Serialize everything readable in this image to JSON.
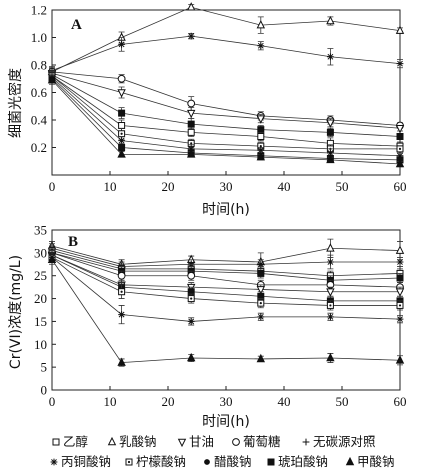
{
  "chart_data": [
    {
      "type": "line",
      "panel_label": "A",
      "xlabel": "时间(h)",
      "ylabel": "细菌光密度",
      "x": [
        0,
        12,
        24,
        36,
        48,
        60
      ],
      "xlim": [
        0,
        60
      ],
      "ylim": [
        0,
        1.2
      ],
      "xticks": [
        "0",
        "10",
        "20",
        "30",
        "40",
        "50",
        "60"
      ],
      "yticks": [
        "0.2",
        "0.4",
        "0.6",
        "0.8",
        "1.0",
        "1.2"
      ],
      "series": [
        {
          "name": "乳酸钠",
          "marker": "triangle-open",
          "values": [
            0.75,
            1.0,
            1.22,
            1.09,
            1.12,
            1.05
          ],
          "errors": [
            0.03,
            0.04,
            0.02,
            0.06,
            0.03,
            0.02
          ]
        },
        {
          "name": "无碳源对照",
          "marker": "star",
          "values": [
            0.76,
            0.95,
            1.01,
            0.94,
            0.86,
            0.81
          ],
          "errors": [
            0.03,
            0.05,
            0.02,
            0.03,
            0.06,
            0.03
          ]
        },
        {
          "name": "葡萄糖",
          "marker": "circle-open",
          "values": [
            0.75,
            0.7,
            0.52,
            0.43,
            0.4,
            0.36
          ],
          "errors": [
            0.03,
            0.03,
            0.05,
            0.03,
            0.03,
            0.02
          ]
        },
        {
          "name": "甘油",
          "marker": "triangle-down-open",
          "values": [
            0.74,
            0.6,
            0.45,
            0.41,
            0.38,
            0.34
          ],
          "errors": [
            0.03,
            0.04,
            0.04,
            0.03,
            0.03,
            0.02
          ]
        },
        {
          "name": "醋酸钠",
          "marker": "square-filled",
          "values": [
            0.73,
            0.45,
            0.37,
            0.33,
            0.31,
            0.28
          ],
          "errors": [
            0.03,
            0.04,
            0.04,
            0.03,
            0.03,
            0.02
          ]
        },
        {
          "name": "乙醇",
          "marker": "square-open",
          "values": [
            0.72,
            0.36,
            0.31,
            0.28,
            0.23,
            0.21
          ],
          "errors": [
            0.03,
            0.04,
            0.03,
            0.03,
            0.04,
            0.03
          ]
        },
        {
          "name": "柠檬酸钠",
          "marker": "square-dot",
          "values": [
            0.72,
            0.3,
            0.23,
            0.21,
            0.19,
            0.19
          ],
          "errors": [
            0.03,
            0.04,
            0.03,
            0.03,
            0.03,
            0.02
          ]
        },
        {
          "name": "丙铜酸钠",
          "marker": "star",
          "values": [
            0.71,
            0.25,
            0.19,
            0.18,
            0.16,
            0.14
          ],
          "errors": [
            0.03,
            0.03,
            0.03,
            0.02,
            0.03,
            0.02
          ]
        },
        {
          "name": "琥珀酸钠",
          "marker": "square-filled",
          "values": [
            0.7,
            0.2,
            0.16,
            0.14,
            0.12,
            0.11
          ],
          "errors": [
            0.03,
            0.03,
            0.02,
            0.02,
            0.02,
            0.02
          ]
        },
        {
          "name": "甲酸钠",
          "marker": "triangle-filled",
          "values": [
            0.69,
            0.15,
            0.15,
            0.13,
            0.11,
            0.08
          ],
          "errors": [
            0.03,
            0.02,
            0.02,
            0.02,
            0.02,
            0.02
          ]
        }
      ]
    },
    {
      "type": "line",
      "panel_label": "B",
      "xlabel": "时间(h)",
      "ylabel": "Cr(VI)浓度(mg/L)",
      "x": [
        0,
        12,
        24,
        36,
        48,
        60
      ],
      "xlim": [
        0,
        60
      ],
      "ylim": [
        0,
        35
      ],
      "xticks": [
        "0",
        "10",
        "20",
        "30",
        "40",
        "50",
        "60"
      ],
      "yticks": [
        "0",
        "5",
        "10",
        "15",
        "20",
        "25",
        "30",
        "35"
      ],
      "series": [
        {
          "name": "乳酸钠",
          "marker": "triangle-open",
          "values": [
            31.5,
            27.5,
            28.5,
            28.0,
            31.0,
            30.5
          ],
          "errors": [
            1.0,
            1.0,
            0.8,
            2.0,
            2.0,
            2.0
          ]
        },
        {
          "name": "无碳源对照",
          "marker": "star",
          "values": [
            31.0,
            27.0,
            27.5,
            27.5,
            28.0,
            28.0
          ],
          "errors": [
            1.0,
            1.0,
            1.0,
            1.0,
            1.5,
            1.0
          ]
        },
        {
          "name": "乙醇",
          "marker": "square-open",
          "values": [
            30.5,
            26.5,
            26.5,
            26.0,
            25.0,
            25.5
          ],
          "errors": [
            1.0,
            1.0,
            1.0,
            1.0,
            1.0,
            1.0
          ]
        },
        {
          "name": "醋酸钠",
          "marker": "square-filled",
          "values": [
            30.0,
            26.0,
            26.0,
            25.5,
            24.0,
            24.5
          ],
          "errors": [
            1.0,
            1.0,
            1.0,
            1.0,
            1.0,
            1.0
          ]
        },
        {
          "name": "葡萄糖",
          "marker": "circle-open",
          "values": [
            30.0,
            25.0,
            25.0,
            23.0,
            23.0,
            22.5
          ],
          "errors": [
            1.0,
            1.0,
            1.0,
            1.0,
            1.0,
            1.0
          ]
        },
        {
          "name": "甘油",
          "marker": "triangle-down-open",
          "values": [
            29.5,
            23.0,
            22.5,
            22.0,
            21.5,
            21.5
          ],
          "errors": [
            1.0,
            1.0,
            1.0,
            1.0,
            1.0,
            1.0
          ]
        },
        {
          "name": "琥珀酸钠",
          "marker": "square-filled",
          "values": [
            29.5,
            22.5,
            21.5,
            20.5,
            19.5,
            19.5
          ],
          "errors": [
            1.0,
            1.0,
            1.0,
            1.0,
            1.0,
            1.0
          ]
        },
        {
          "name": "柠檬酸钠",
          "marker": "square-dot",
          "values": [
            29.0,
            21.5,
            20.0,
            19.0,
            18.5,
            18.5
          ],
          "errors": [
            1.0,
            1.5,
            1.0,
            1.0,
            1.0,
            1.0
          ]
        },
        {
          "name": "丙铜酸钠",
          "marker": "star",
          "values": [
            29.0,
            16.5,
            15.0,
            16.0,
            16.0,
            15.5
          ],
          "errors": [
            1.0,
            2.0,
            0.8,
            0.8,
            0.8,
            0.8
          ]
        },
        {
          "name": "甲酸钠",
          "marker": "triangle-filled",
          "values": [
            28.5,
            6.0,
            7.0,
            6.8,
            7.0,
            6.5
          ],
          "errors": [
            1.0,
            0.8,
            0.8,
            0.6,
            1.0,
            1.0
          ]
        }
      ]
    }
  ],
  "legend": {
    "row1": [
      {
        "marker": "square-open",
        "label": "乙醇"
      },
      {
        "marker": "triangle-open",
        "label": "乳酸钠"
      },
      {
        "marker": "triangle-down-open",
        "label": "甘油"
      },
      {
        "marker": "circle-open",
        "label": "葡萄糖"
      },
      {
        "marker": "plus",
        "label": "无碳源对照"
      }
    ],
    "row2": [
      {
        "marker": "star",
        "label": "丙铜酸钠"
      },
      {
        "marker": "square-dot",
        "label": "柠檬酸钠"
      },
      {
        "marker": "dot",
        "label": "醋酸钠"
      },
      {
        "marker": "square-filled",
        "label": "琥珀酸钠"
      },
      {
        "marker": "triangle-filled",
        "label": "甲酸钠"
      }
    ]
  }
}
